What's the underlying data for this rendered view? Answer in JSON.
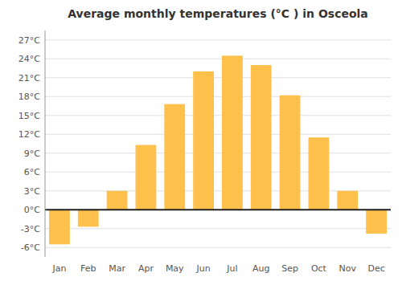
{
  "chart_data": {
    "type": "bar",
    "title": "Average monthly temperatures (°C ) in Osceola",
    "categories": [
      "Jan",
      "Feb",
      "Mar",
      "Apr",
      "May",
      "Jun",
      "Jul",
      "Aug",
      "Sep",
      "Oct",
      "Nov",
      "Dec"
    ],
    "values": [
      -5.5,
      -2.7,
      3.0,
      10.3,
      16.8,
      22.0,
      24.5,
      23.0,
      18.2,
      11.5,
      3.0,
      -3.8
    ],
    "color": "#FFC04C",
    "ylim": [
      -7.5,
      28.5
    ],
    "yticks": [
      {
        "value": -6,
        "label": "-6°C"
      },
      {
        "value": -3,
        "label": "-3°C"
      },
      {
        "value": 0,
        "label": "0°C"
      },
      {
        "value": 3,
        "label": "3°C"
      },
      {
        "value": 6,
        "label": "6°C"
      },
      {
        "value": 9,
        "label": "9°C"
      },
      {
        "value": 12,
        "label": "12°C"
      },
      {
        "value": 15,
        "label": "15°C"
      },
      {
        "value": 18,
        "label": "18°C"
      },
      {
        "value": 21,
        "label": "21°C"
      },
      {
        "value": 24,
        "label": "24°C"
      },
      {
        "value": 27,
        "label": "27°C"
      }
    ],
    "grid": true
  }
}
